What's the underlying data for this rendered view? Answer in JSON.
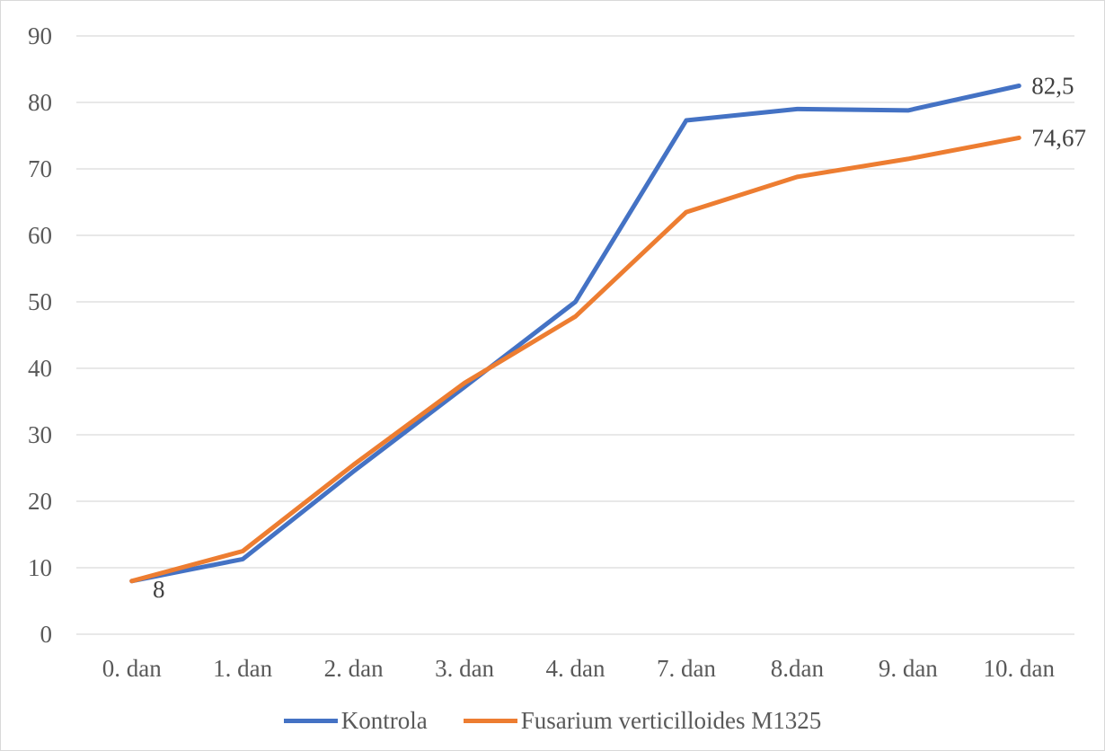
{
  "chart_data": {
    "type": "line",
    "title": "",
    "xlabel": "",
    "ylabel": "",
    "categories": [
      "0. dan",
      "1. dan",
      "2. dan",
      "3. dan",
      "4. dan",
      "7. dan",
      "8.dan",
      "9. dan",
      "10. dan"
    ],
    "ylim": [
      0,
      90
    ],
    "yticks": [
      0,
      10,
      20,
      30,
      40,
      50,
      60,
      70,
      80,
      90
    ],
    "grid": "horizontal",
    "legend_position": "bottom",
    "series": [
      {
        "name": "Kontrola",
        "color": "#4472C4",
        "values": [
          8,
          11.3,
          24.5,
          37.2,
          50,
          77.3,
          79,
          78.8,
          82.5
        ]
      },
      {
        "name": "Fusarium verticilloides M1325",
        "color": "#ED7D31",
        "values": [
          8,
          12.5,
          25.5,
          37.8,
          47.8,
          63.5,
          68.8,
          71.5,
          74.67
        ]
      }
    ],
    "data_labels": [
      {
        "series": 0,
        "index": 0,
        "text": "8"
      },
      {
        "series": 0,
        "index": 8,
        "text": "82,5"
      },
      {
        "series": 1,
        "index": 8,
        "text": "74,67"
      }
    ]
  }
}
